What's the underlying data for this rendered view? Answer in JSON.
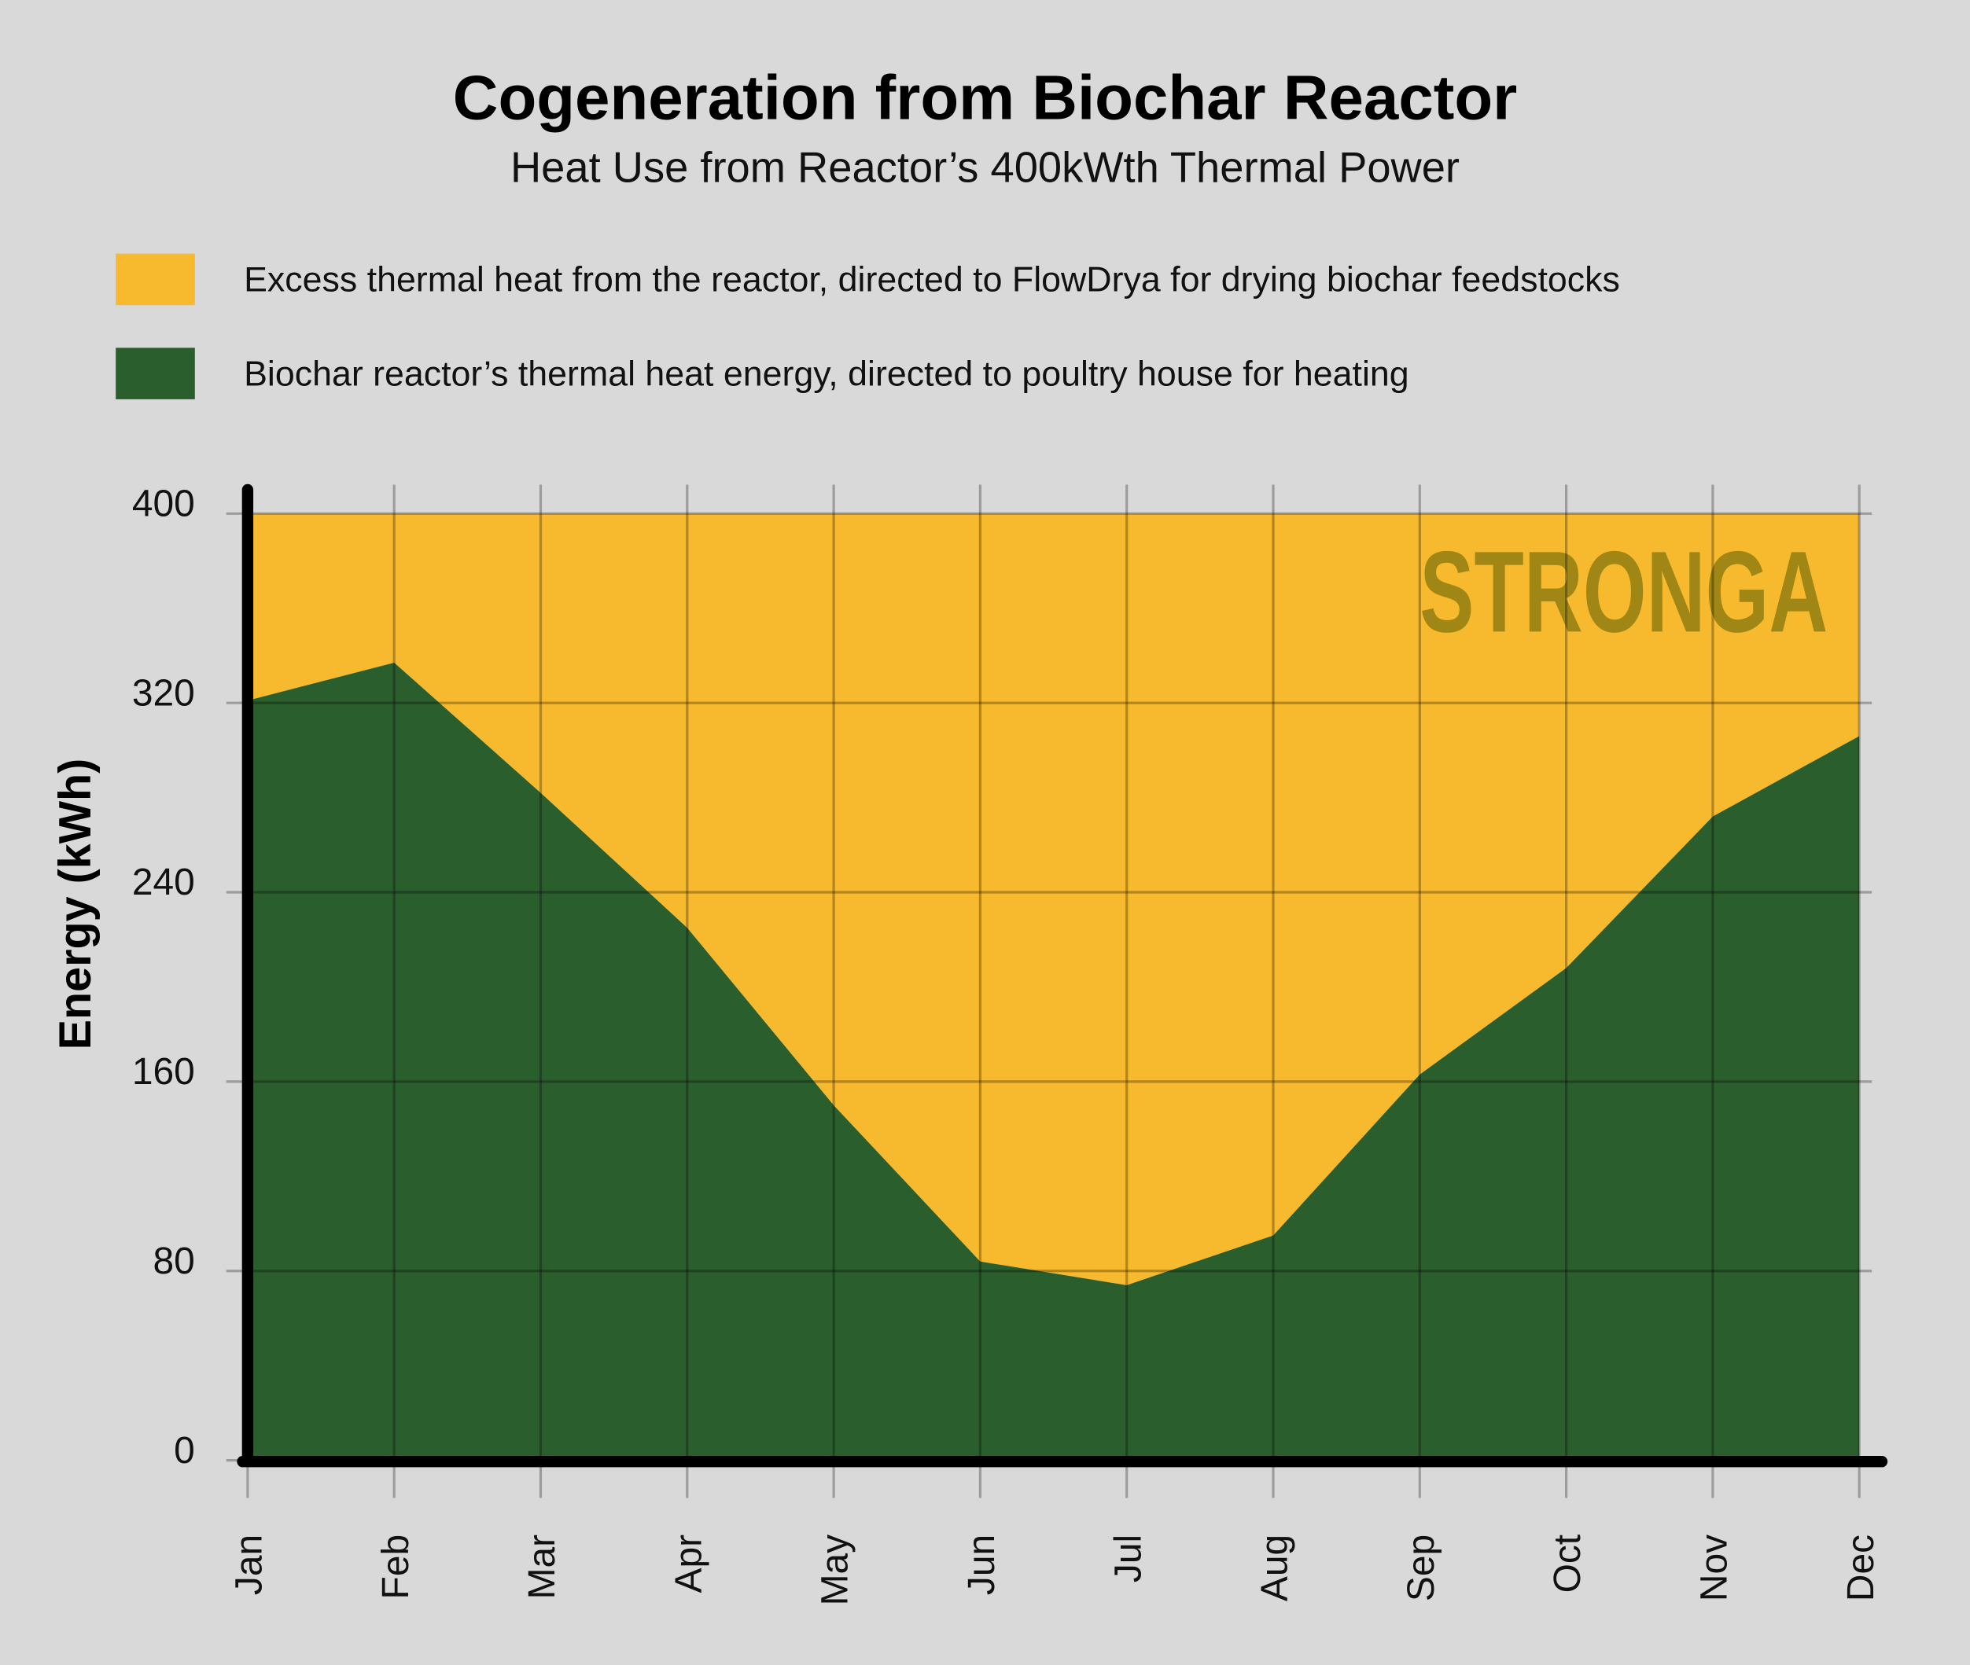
{
  "chart_data": {
    "type": "area",
    "title": "Cogeneration from Biochar Reactor",
    "subtitle": "Heat Use from Reactor’s 400kWth Thermal Power",
    "ylabel": "Energy (kWh)",
    "xlabel": "",
    "ylim": [
      0,
      400
    ],
    "yticks": [
      "0",
      "80",
      "160",
      "240",
      "320",
      "400"
    ],
    "ytick_values": [
      0,
      80,
      160,
      240,
      320,
      400
    ],
    "categories": [
      "Jan",
      "Feb",
      "Mar",
      "Apr",
      "May",
      "Jun",
      "Jul",
      "Aug",
      "Sep",
      "Oct",
      "Nov",
      "Dec"
    ],
    "series": [
      {
        "name": "Biochar reactor’s thermal heat energy, directed to poultry house for heating",
        "color": "#2b5e2d",
        "values": [
          321,
          337,
          282,
          225,
          150,
          84,
          74,
          95,
          163,
          208,
          272,
          306
        ]
      },
      {
        "name": "Excess thermal heat from the reactor, directed to FlowDrya for drying biochar feedstocks",
        "color": "#f7b92d",
        "values": [
          79,
          63,
          118,
          175,
          250,
          316,
          326,
          305,
          237,
          192,
          128,
          94
        ]
      }
    ],
    "legend_position": "top",
    "grid": true,
    "watermark": "STRONGA"
  }
}
